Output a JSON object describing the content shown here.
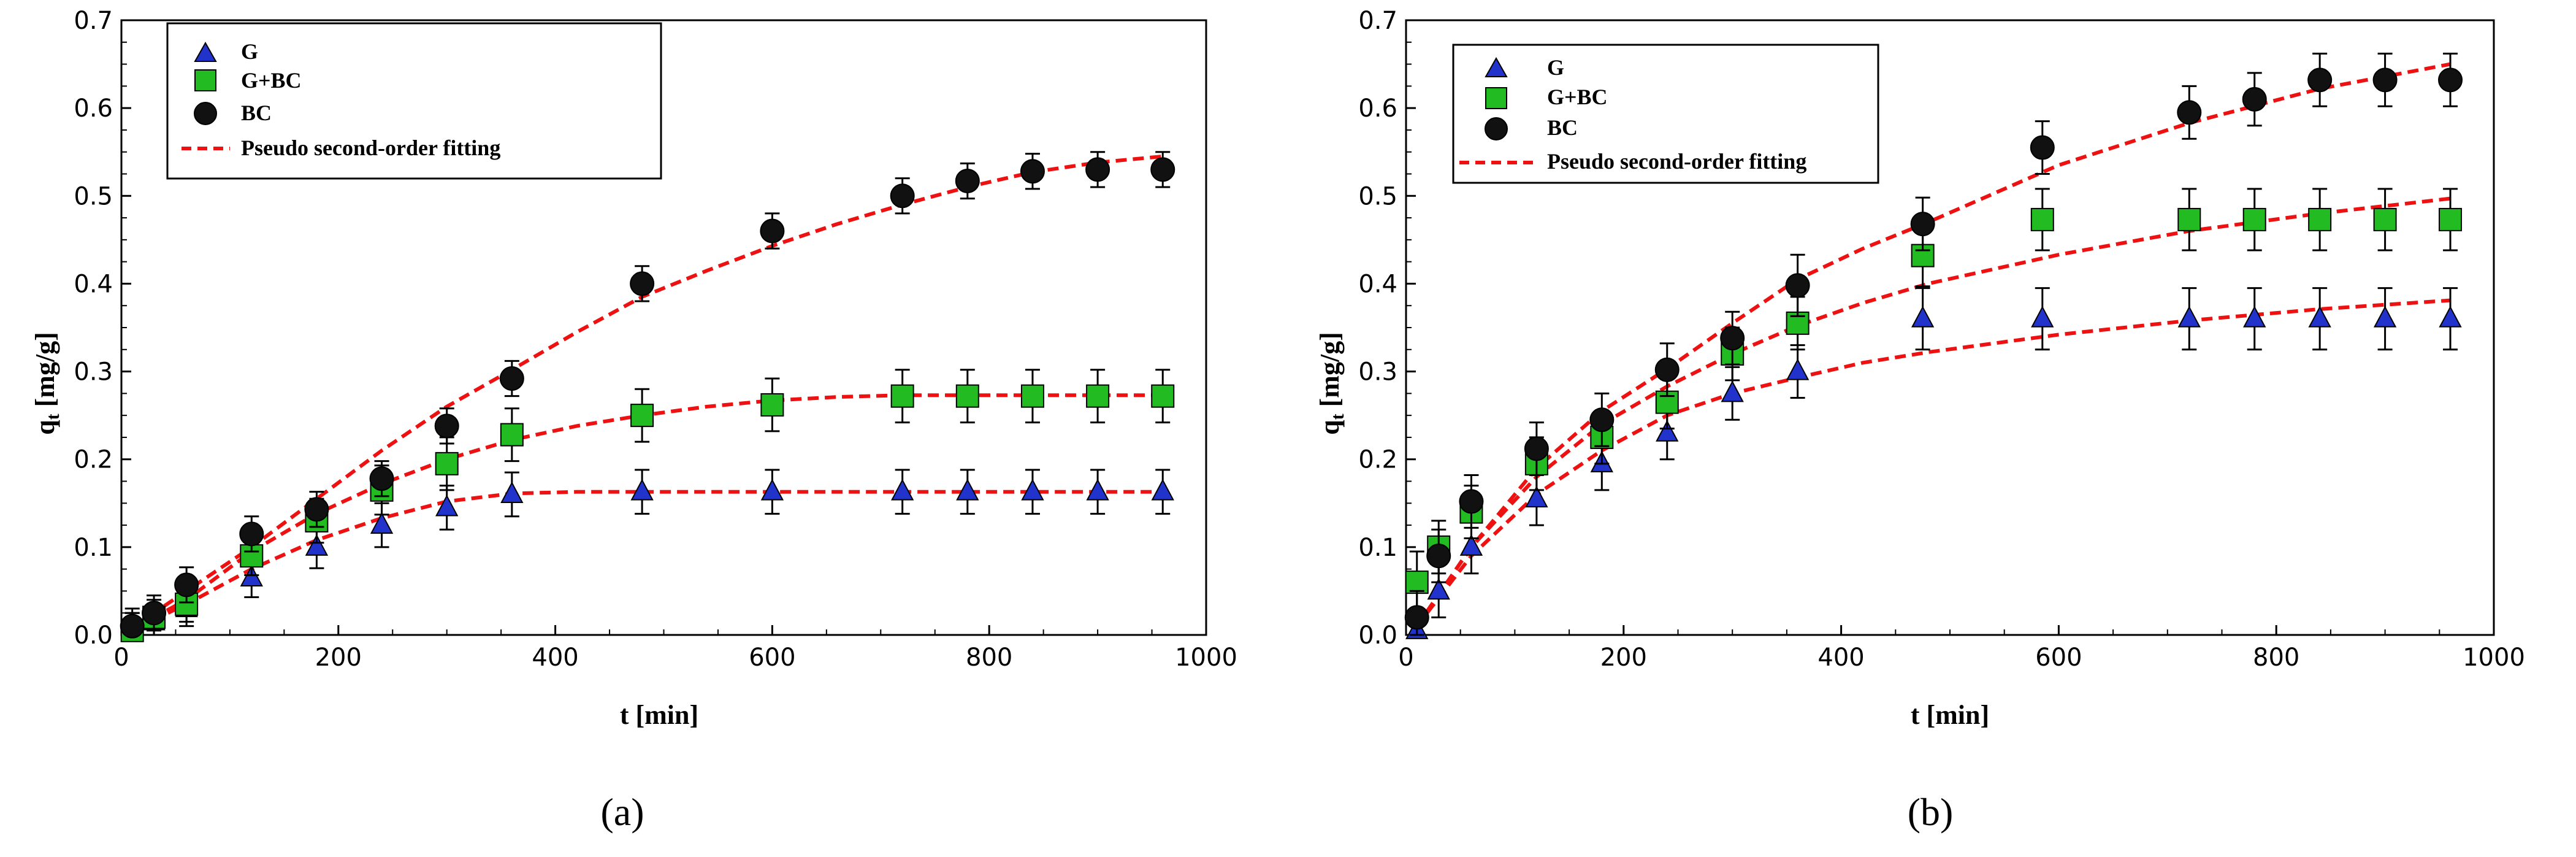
{
  "chart_data": [
    {
      "type": "scatter",
      "panel_label": "(a)",
      "xlabel": "t [min]",
      "ylabel": "qt [mg/g]",
      "ylabel_main": "q",
      "ylabel_sub": "t",
      "ylabel_unit": " [mg/g]",
      "xlim": [
        0,
        1000
      ],
      "ylim": [
        0,
        0.7
      ],
      "xticks": [
        "0",
        "200",
        "400",
        "600",
        "800",
        "1000"
      ],
      "yticks": [
        "0.0",
        "0.1",
        "0.2",
        "0.3",
        "0.4",
        "0.5",
        "0.6",
        "0.7"
      ],
      "legend_position": "top-left",
      "legend": [
        "G",
        "G+BC",
        "BC",
        "Pseudo second-order fitting"
      ],
      "series": [
        {
          "name": "G",
          "marker": "triangle",
          "color": "#2233cc",
          "x": [
            10,
            30,
            60,
            120,
            180,
            240,
            300,
            360,
            480,
            600,
            720,
            780,
            840,
            900,
            960
          ],
          "y": [
            0.005,
            0.015,
            0.03,
            0.065,
            0.1,
            0.125,
            0.145,
            0.16,
            0.163,
            0.163,
            0.163,
            0.163,
            0.163,
            0.163,
            0.163
          ],
          "err": [
            0.02,
            0.02,
            0.02,
            0.022,
            0.024,
            0.025,
            0.025,
            0.025,
            0.025,
            0.025,
            0.025,
            0.025,
            0.025,
            0.025,
            0.025
          ]
        },
        {
          "name": "G+BC",
          "marker": "square",
          "color": "#22bb22",
          "x": [
            10,
            30,
            60,
            120,
            180,
            240,
            300,
            360,
            480,
            600,
            720,
            780,
            840,
            900,
            960
          ],
          "y": [
            0.005,
            0.02,
            0.035,
            0.09,
            0.13,
            0.165,
            0.195,
            0.228,
            0.25,
            0.262,
            0.272,
            0.272,
            0.272,
            0.272,
            0.272
          ],
          "err": [
            0.02,
            0.02,
            0.02,
            0.022,
            0.025,
            0.028,
            0.03,
            0.03,
            0.03,
            0.03,
            0.03,
            0.03,
            0.03,
            0.03,
            0.03
          ]
        },
        {
          "name": "BC",
          "marker": "circle",
          "color": "#111111",
          "x": [
            10,
            30,
            60,
            120,
            180,
            240,
            300,
            360,
            480,
            600,
            720,
            780,
            840,
            900,
            960
          ],
          "y": [
            0.01,
            0.025,
            0.057,
            0.115,
            0.143,
            0.178,
            0.238,
            0.292,
            0.4,
            0.46,
            0.5,
            0.517,
            0.528,
            0.53,
            0.53
          ],
          "err": [
            0.02,
            0.02,
            0.02,
            0.02,
            0.02,
            0.02,
            0.02,
            0.02,
            0.02,
            0.02,
            0.02,
            0.02,
            0.02,
            0.02,
            0.02
          ]
        }
      ],
      "fits": [
        {
          "name": "G fit",
          "color": "#ee1111",
          "x": [
            0,
            60,
            120,
            180,
            240,
            300,
            360,
            420,
            480,
            600,
            720,
            840,
            960
          ],
          "y": [
            0,
            0.035,
            0.075,
            0.108,
            0.133,
            0.152,
            0.161,
            0.163,
            0.163,
            0.163,
            0.163,
            0.163,
            0.163
          ]
        },
        {
          "name": "G+BC fit",
          "color": "#ee1111",
          "x": [
            0,
            60,
            120,
            180,
            240,
            300,
            360,
            420,
            480,
            540,
            600,
            660,
            720,
            840,
            960
          ],
          "y": [
            0,
            0.04,
            0.095,
            0.138,
            0.172,
            0.2,
            0.222,
            0.238,
            0.25,
            0.26,
            0.267,
            0.271,
            0.273,
            0.273,
            0.273
          ]
        },
        {
          "name": "BC fit",
          "color": "#ee1111",
          "x": [
            0,
            60,
            120,
            180,
            240,
            300,
            360,
            420,
            480,
            540,
            600,
            660,
            720,
            780,
            840,
            900,
            960
          ],
          "y": [
            0,
            0.05,
            0.1,
            0.155,
            0.21,
            0.26,
            0.302,
            0.345,
            0.385,
            0.415,
            0.443,
            0.468,
            0.49,
            0.51,
            0.527,
            0.538,
            0.545
          ]
        }
      ]
    },
    {
      "type": "scatter",
      "panel_label": "(b)",
      "xlabel": "t [min]",
      "ylabel": "qt [mg/g]",
      "ylabel_main": "q",
      "ylabel_sub": "t",
      "ylabel_unit": " [mg/g]",
      "xlim": [
        0,
        1000
      ],
      "ylim": [
        0,
        0.7
      ],
      "xticks": [
        "0",
        "200",
        "400",
        "600",
        "800",
        "1000"
      ],
      "yticks": [
        "0.0",
        "0.1",
        "0.2",
        "0.3",
        "0.4",
        "0.5",
        "0.6",
        "0.7"
      ],
      "legend_position": "top-left",
      "legend": [
        "G",
        "G+BC",
        "BC",
        "Pseudo second-order fitting"
      ],
      "series": [
        {
          "name": "G",
          "marker": "triangle",
          "color": "#2233cc",
          "x": [
            10,
            30,
            60,
            120,
            180,
            240,
            300,
            360,
            475,
            585,
            720,
            780,
            840,
            900,
            960
          ],
          "y": [
            0.005,
            0.05,
            0.1,
            0.155,
            0.195,
            0.23,
            0.275,
            0.3,
            0.36,
            0.36,
            0.36,
            0.36,
            0.36,
            0.36,
            0.36
          ],
          "err": [
            0.025,
            0.03,
            0.03,
            0.03,
            0.03,
            0.03,
            0.03,
            0.03,
            0.035,
            0.035,
            0.035,
            0.035,
            0.035,
            0.035,
            0.035
          ]
        },
        {
          "name": "G+BC",
          "marker": "square",
          "color": "#22bb22",
          "x": [
            10,
            30,
            60,
            120,
            180,
            240,
            300,
            360,
            475,
            585,
            720,
            780,
            840,
            900,
            960
          ],
          "y": [
            0.06,
            0.1,
            0.14,
            0.195,
            0.225,
            0.265,
            0.32,
            0.355,
            0.432,
            0.473,
            0.473,
            0.473,
            0.473,
            0.473,
            0.473
          ],
          "err": [
            0.035,
            0.03,
            0.03,
            0.03,
            0.03,
            0.03,
            0.03,
            0.03,
            0.035,
            0.035,
            0.035,
            0.035,
            0.035,
            0.035,
            0.035
          ]
        },
        {
          "name": "BC",
          "marker": "circle",
          "color": "#111111",
          "x": [
            10,
            30,
            60,
            120,
            180,
            240,
            300,
            360,
            475,
            585,
            720,
            780,
            840,
            900,
            960
          ],
          "y": [
            0.02,
            0.09,
            0.152,
            0.212,
            0.245,
            0.302,
            0.338,
            0.398,
            0.468,
            0.555,
            0.595,
            0.61,
            0.632,
            0.632,
            0.632
          ],
          "err": [
            0.03,
            0.03,
            0.03,
            0.03,
            0.03,
            0.03,
            0.03,
            0.035,
            0.03,
            0.03,
            0.03,
            0.03,
            0.03,
            0.03,
            0.03
          ]
        }
      ],
      "fits": [
        {
          "name": "G fit",
          "color": "#ee1111",
          "x": [
            10,
            60,
            120,
            180,
            240,
            300,
            360,
            420,
            480,
            600,
            720,
            840,
            960
          ],
          "y": [
            0.01,
            0.09,
            0.16,
            0.21,
            0.25,
            0.275,
            0.293,
            0.31,
            0.322,
            0.342,
            0.358,
            0.371,
            0.381
          ]
        },
        {
          "name": "G+BC fit",
          "color": "#ee1111",
          "x": [
            10,
            60,
            120,
            180,
            240,
            300,
            360,
            420,
            480,
            600,
            720,
            840,
            960
          ],
          "y": [
            0.01,
            0.1,
            0.18,
            0.24,
            0.283,
            0.32,
            0.352,
            0.378,
            0.4,
            0.433,
            0.46,
            0.48,
            0.497
          ]
        },
        {
          "name": "BC fit",
          "color": "#ee1111",
          "x": [
            10,
            60,
            120,
            180,
            240,
            300,
            360,
            420,
            480,
            600,
            720,
            840,
            960
          ],
          "y": [
            0.01,
            0.1,
            0.19,
            0.255,
            0.303,
            0.355,
            0.405,
            0.44,
            0.47,
            0.535,
            0.583,
            0.622,
            0.65
          ]
        }
      ]
    }
  ]
}
